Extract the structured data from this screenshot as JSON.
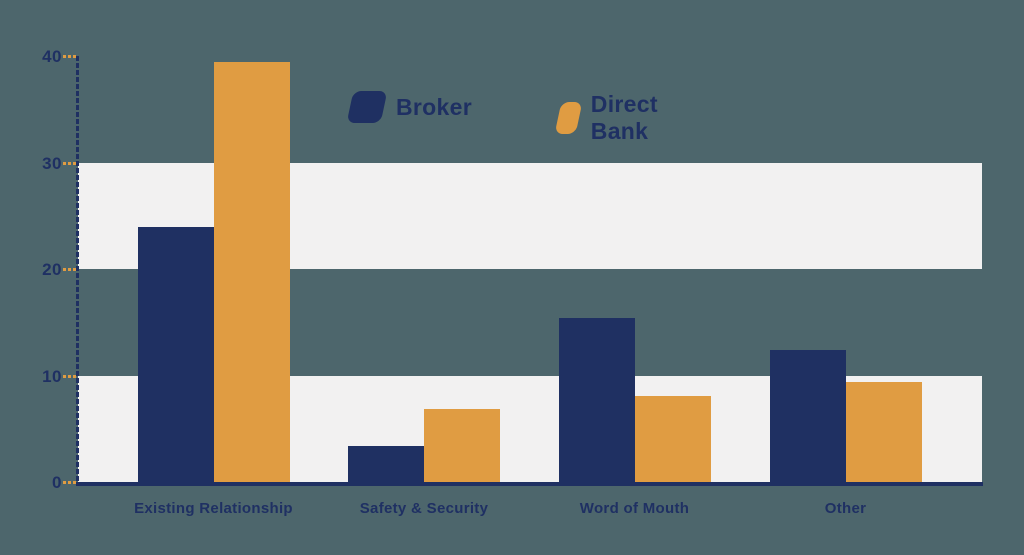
{
  "chart_data": {
    "type": "bar",
    "title": "",
    "categories": [
      "Existing Relationship",
      "Safety & Security",
      "Word of Mouth",
      "Other"
    ],
    "series": [
      {
        "name": "Broker",
        "color": "#1f3062",
        "values": [
          23.9,
          3.4,
          15.4,
          12.4
        ]
      },
      {
        "name": "Direct Bank",
        "color": "#e09c42",
        "values": [
          39.4,
          6.9,
          8.1,
          9.4
        ]
      }
    ],
    "xlabel": "",
    "ylabel": "",
    "y_ticks": [
      0,
      10,
      20,
      30,
      40
    ],
    "ylim": [
      0,
      40
    ],
    "grid": "banded-stripes",
    "band_ranges": [
      [
        20,
        30
      ],
      [
        0,
        10
      ]
    ],
    "legend_position": "top-center",
    "colors": {
      "background": "#4d666c",
      "band": "#f2f1f1",
      "axis": "#1f3062",
      "tick": "#e09c42",
      "text": "#1f3063"
    }
  }
}
